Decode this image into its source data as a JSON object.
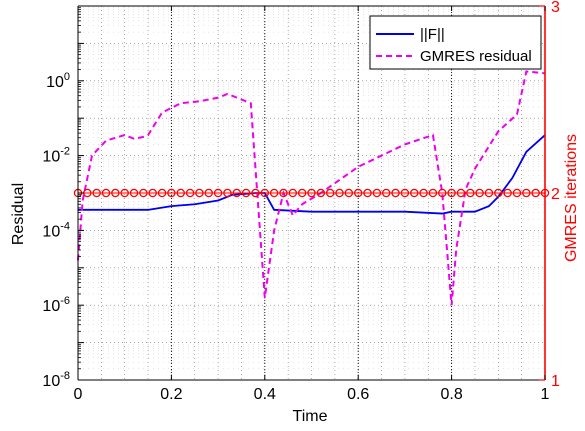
{
  "chart_data": {
    "type": "line",
    "xlabel": "Time",
    "ylabel": "Residual",
    "ylabel_right": "GMRES iterations",
    "xlim": [
      0,
      1
    ],
    "ylim_log10": [
      -8,
      2
    ],
    "yscale": "log",
    "ylim_right": [
      1,
      3
    ],
    "grid": "major x dotted, minor dotted",
    "legend_position": "top-right",
    "x_ticks": [
      "0",
      "0.2",
      "0.4",
      "0.6",
      "0.8",
      "1"
    ],
    "x_tick_values": [
      0,
      0.2,
      0.4,
      0.6,
      0.8,
      1
    ],
    "y_ticks_exponents": [
      "0",
      "-2",
      "-4",
      "-6",
      "-8"
    ],
    "y_tick_base": "10",
    "y_tick_values_log10": [
      0,
      -2,
      -4,
      -6,
      -8
    ],
    "y_right_ticks": [
      "3",
      "2",
      "1"
    ],
    "y_right_tick_values": [
      3,
      2,
      1
    ],
    "colors": {
      "norm_f": "#0000ee",
      "gmres_residual": "#ee00ee",
      "gmres_iterations": "#ff0000",
      "axis": "#000000",
      "right_axis": "#ff0000",
      "grid": "#777777"
    },
    "series": [
      {
        "name": "||F||",
        "style": "solid",
        "x": [
          0.0,
          0.06,
          0.1,
          0.15,
          0.2,
          0.25,
          0.3,
          0.33,
          0.38,
          0.4,
          0.42,
          0.5,
          0.6,
          0.7,
          0.78,
          0.8,
          0.85,
          0.88,
          0.9,
          0.93,
          0.96,
          1.0
        ],
        "y_log10": [
          -3.45,
          -3.45,
          -3.45,
          -3.45,
          -3.35,
          -3.3,
          -3.2,
          -3.05,
          -3.0,
          -3.0,
          -3.45,
          -3.5,
          -3.5,
          -3.5,
          -3.55,
          -3.5,
          -3.5,
          -3.35,
          -3.1,
          -2.6,
          -1.9,
          -1.45
        ]
      },
      {
        "name": "GMRES residual",
        "style": "dashed",
        "x": [
          0.0,
          0.01,
          0.03,
          0.06,
          0.1,
          0.12,
          0.14,
          0.15,
          0.18,
          0.22,
          0.26,
          0.3,
          0.32,
          0.34,
          0.37,
          0.4,
          0.42,
          0.44,
          0.46,
          0.48,
          0.52,
          0.6,
          0.7,
          0.76,
          0.78,
          0.8,
          0.81,
          0.83,
          0.85,
          0.9,
          0.94,
          0.96,
          1.0
        ],
        "y_log10": [
          -4.8,
          -3.2,
          -2.0,
          -1.6,
          -1.45,
          -1.55,
          -1.5,
          -1.45,
          -0.85,
          -0.6,
          -0.55,
          -0.45,
          -0.35,
          -0.45,
          -0.6,
          -5.8,
          -4.0,
          -3.0,
          -3.6,
          -3.3,
          -3.0,
          -2.3,
          -1.7,
          -1.45,
          -3.0,
          -6.0,
          -4.5,
          -2.9,
          -2.35,
          -1.35,
          -0.9,
          0.25,
          0.2
        ]
      },
      {
        "name": "GMRES iterations",
        "axis": "right",
        "style": "circle-markers",
        "x": [
          0.0,
          0.02,
          0.04,
          0.06,
          0.08,
          0.1,
          0.12,
          0.14,
          0.16,
          0.18,
          0.2,
          0.22,
          0.24,
          0.26,
          0.28,
          0.3,
          0.32,
          0.34,
          0.36,
          0.38,
          0.4,
          0.42,
          0.44,
          0.46,
          0.48,
          0.5,
          0.52,
          0.54,
          0.56,
          0.58,
          0.6,
          0.62,
          0.64,
          0.66,
          0.68,
          0.7,
          0.72,
          0.74,
          0.76,
          0.78,
          0.8,
          0.82,
          0.84,
          0.86,
          0.88,
          0.9,
          0.92,
          0.94,
          0.96,
          0.98,
          1.0
        ],
        "y": [
          2,
          2,
          2,
          2,
          2,
          2,
          2,
          2,
          2,
          2,
          2,
          2,
          2,
          2,
          2,
          2,
          2,
          2,
          2,
          2,
          2,
          2,
          2,
          2,
          2,
          2,
          2,
          2,
          2,
          2,
          2,
          2,
          2,
          2,
          2,
          2,
          2,
          2,
          2,
          2,
          2,
          2,
          2,
          2,
          2,
          2,
          2,
          2,
          2,
          2,
          2
        ]
      }
    ],
    "legend": [
      "||F||",
      "GMRES residual"
    ]
  }
}
